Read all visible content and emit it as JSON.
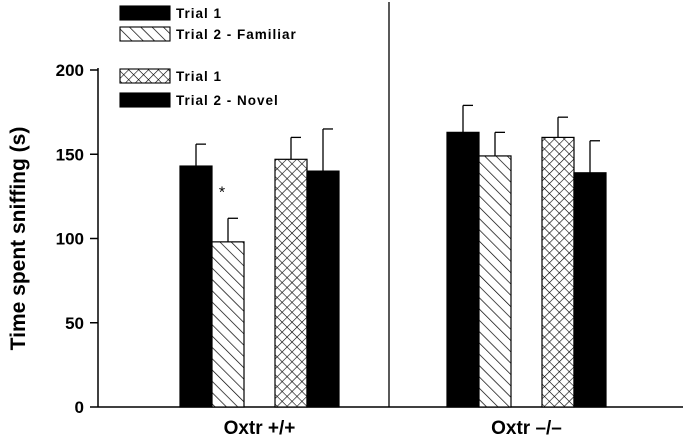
{
  "chart_data": {
    "type": "bar",
    "title": "",
    "xlabel": "",
    "ylabel": "Time spent sniffing (s)",
    "ylim": [
      0,
      200
    ],
    "yticks": [
      0,
      50,
      100,
      150,
      200
    ],
    "categories": [
      "Oxtr +/+",
      "Oxtr  –/–"
    ],
    "series": [
      {
        "name": "Trial 1",
        "pattern": "solid",
        "color": "#000000",
        "values": [
          143,
          163
        ],
        "errors": [
          13,
          16
        ]
      },
      {
        "name": "Trial 2 - Familiar",
        "pattern": "diagonal-hatch",
        "color": "#000000",
        "values": [
          98,
          149
        ],
        "errors": [
          14,
          14
        ]
      },
      {
        "name": "Trial 1",
        "pattern": "cross-hatch",
        "color": "#000000",
        "values": [
          147,
          160
        ],
        "errors": [
          13,
          12
        ]
      },
      {
        "name": "Trial 2 - Novel",
        "pattern": "solid",
        "color": "#000000",
        "values": [
          140,
          139
        ],
        "errors": [
          25,
          19
        ]
      }
    ],
    "annotations": [
      {
        "text": "*",
        "series": 1,
        "category": 0
      }
    ],
    "legend_position": "top-left",
    "grid": false,
    "divider_between_categories": true
  }
}
